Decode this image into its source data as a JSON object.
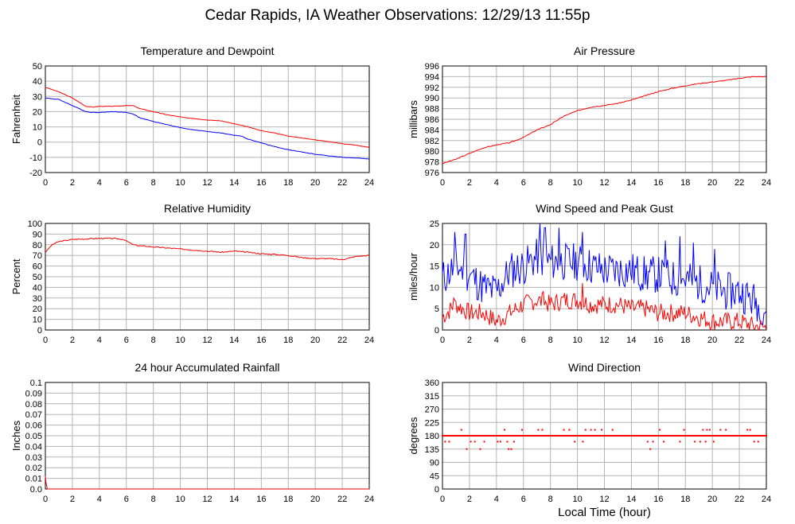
{
  "page": {
    "title": "Cedar Rapids, IA Weather Observations: 12/29/13 11:55p"
  },
  "chart_data": [
    {
      "id": "temp",
      "type": "line",
      "title": "Temperature and Dewpoint",
      "ylabel": "Fahrenheit",
      "xlabel": "",
      "xlim": [
        0,
        24
      ],
      "ylim": [
        -20,
        50
      ],
      "xticks": [
        0,
        2,
        4,
        6,
        8,
        10,
        12,
        14,
        16,
        18,
        20,
        22,
        24
      ],
      "yticks": [
        -20,
        -10,
        0,
        10,
        20,
        30,
        40,
        50
      ],
      "grid": true,
      "series": [
        {
          "color": "#ff0000",
          "jitter": 0.15,
          "points": [
            [
              0,
              36
            ],
            [
              0.5,
              34.5
            ],
            [
              1,
              33
            ],
            [
              2,
              29
            ],
            [
              3,
              23.5
            ],
            [
              3.5,
              23
            ],
            [
              4,
              23.5
            ],
            [
              5,
              23.5
            ],
            [
              6,
              24
            ],
            [
              6.5,
              24
            ],
            [
              7,
              22
            ],
            [
              8,
              20
            ],
            [
              9,
              18
            ],
            [
              10,
              16.5
            ],
            [
              11,
              15.5
            ],
            [
              12,
              14.5
            ],
            [
              13,
              14
            ],
            [
              14,
              12
            ],
            [
              14.5,
              11
            ],
            [
              15,
              10
            ],
            [
              16,
              7.5
            ],
            [
              17,
              6
            ],
            [
              18,
              4
            ],
            [
              20,
              1.5
            ],
            [
              22,
              -1
            ],
            [
              23,
              -2
            ],
            [
              24,
              -3.5
            ]
          ]
        },
        {
          "color": "#0000ff",
          "jitter": 0.15,
          "points": [
            [
              0,
              29
            ],
            [
              0.5,
              28.5
            ],
            [
              1,
              28
            ],
            [
              2,
              24
            ],
            [
              3,
              20
            ],
            [
              3.5,
              19.5
            ],
            [
              4,
              19.5
            ],
            [
              5,
              20
            ],
            [
              6,
              19.5
            ],
            [
              6.5,
              18.5
            ],
            [
              7,
              16
            ],
            [
              8,
              13.5
            ],
            [
              9,
              11.5
            ],
            [
              10,
              9.5
            ],
            [
              11,
              8
            ],
            [
              12,
              7
            ],
            [
              13,
              6
            ],
            [
              14,
              4.5
            ],
            [
              14.5,
              4
            ],
            [
              15,
              2
            ],
            [
              16,
              -0.5
            ],
            [
              17,
              -3
            ],
            [
              18,
              -5
            ],
            [
              20,
              -8
            ],
            [
              22,
              -10
            ],
            [
              24,
              -11
            ]
          ]
        }
      ]
    },
    {
      "id": "pressure",
      "type": "line",
      "title": "Air Pressure",
      "ylabel": "millibars",
      "xlabel": "",
      "xlim": [
        0,
        24
      ],
      "ylim": [
        976,
        996
      ],
      "xticks": [
        0,
        2,
        4,
        6,
        8,
        10,
        12,
        14,
        16,
        18,
        20,
        22,
        24
      ],
      "yticks": [
        976,
        978,
        980,
        982,
        984,
        986,
        988,
        990,
        992,
        994,
        996
      ],
      "grid": true,
      "series": [
        {
          "color": "#ff0000",
          "jitter": 0.08,
          "points": [
            [
              0,
              977.7
            ],
            [
              1,
              978.5
            ],
            [
              2,
              979.6
            ],
            [
              3,
              980.6
            ],
            [
              4,
              981.2
            ],
            [
              5,
              981.6
            ],
            [
              6,
              982.6
            ],
            [
              7,
              984
            ],
            [
              8,
              985
            ],
            [
              9,
              986.6
            ],
            [
              10,
              987.6
            ],
            [
              11,
              988.3
            ],
            [
              12,
              988.6
            ],
            [
              13,
              989
            ],
            [
              14,
              989.6
            ],
            [
              15,
              990.4
            ],
            [
              16,
              991.2
            ],
            [
              17,
              991.8
            ],
            [
              18,
              992.3
            ],
            [
              19,
              992.7
            ],
            [
              20,
              993
            ],
            [
              21,
              993.3
            ],
            [
              22,
              993.7
            ],
            [
              23,
              994
            ],
            [
              24,
              994
            ]
          ]
        }
      ]
    },
    {
      "id": "humidity",
      "type": "line",
      "title": "Relative Humidity",
      "ylabel": "Percent",
      "xlabel": "",
      "xlim": [
        0,
        24
      ],
      "ylim": [
        0,
        100
      ],
      "xticks": [
        0,
        2,
        4,
        6,
        8,
        10,
        12,
        14,
        16,
        18,
        20,
        22,
        24
      ],
      "yticks": [
        0,
        10,
        20,
        30,
        40,
        50,
        60,
        70,
        80,
        90,
        100
      ],
      "grid": true,
      "series": [
        {
          "color": "#ff0000",
          "jitter": 0.5,
          "points": [
            [
              0,
              73
            ],
            [
              0.5,
              80
            ],
            [
              1,
              83
            ],
            [
              2,
              85
            ],
            [
              3,
              85.5
            ],
            [
              4,
              86
            ],
            [
              5,
              86
            ],
            [
              5.8,
              85
            ],
            [
              6.5,
              80
            ],
            [
              7,
              79
            ],
            [
              8,
              78
            ],
            [
              9,
              77
            ],
            [
              10,
              76
            ],
            [
              11,
              75
            ],
            [
              12,
              74
            ],
            [
              13,
              73
            ],
            [
              14,
              74
            ],
            [
              15,
              73
            ],
            [
              16,
              71.5
            ],
            [
              17,
              71
            ],
            [
              18,
              70
            ],
            [
              19,
              68
            ],
            [
              20,
              67
            ],
            [
              21,
              67
            ],
            [
              22,
              66
            ],
            [
              23,
              69
            ],
            [
              24,
              70
            ]
          ]
        }
      ]
    },
    {
      "id": "wind",
      "type": "line",
      "title": "Wind Speed and Peak Gust",
      "ylabel": "miles/hour",
      "xlabel": "",
      "xlim": [
        0,
        24
      ],
      "ylim": [
        0,
        25
      ],
      "xticks": [
        0,
        2,
        4,
        6,
        8,
        10,
        12,
        14,
        16,
        18,
        20,
        22,
        24
      ],
      "yticks": [
        0,
        5,
        10,
        15,
        20,
        25
      ],
      "grid": true,
      "series": [
        {
          "color": "#0000ff",
          "noisy": true,
          "noise": 4.5,
          "seed": 11,
          "points": [
            [
              0,
              12
            ],
            [
              1,
              15
            ],
            [
              2,
              13
            ],
            [
              3,
              10
            ],
            [
              4,
              9
            ],
            [
              5,
              14
            ],
            [
              6,
              15
            ],
            [
              7,
              17
            ],
            [
              8,
              16
            ],
            [
              9,
              16
            ],
            [
              10,
              16
            ],
            [
              11,
              15
            ],
            [
              12,
              14
            ],
            [
              13,
              14
            ],
            [
              14,
              14
            ],
            [
              15,
              13
            ],
            [
              16,
              13
            ],
            [
              17,
              12
            ],
            [
              18,
              12
            ],
            [
              19,
              11
            ],
            [
              20,
              10
            ],
            [
              21,
              9
            ],
            [
              22,
              9
            ],
            [
              23,
              7
            ],
            [
              24,
              5
            ]
          ],
          "peaks": [
            [
              0.9,
              23
            ],
            [
              1.7,
              22.5
            ],
            [
              7.2,
              25
            ],
            [
              7.6,
              24
            ],
            [
              8.6,
              24
            ],
            [
              10.4,
              23
            ],
            [
              16.5,
              21
            ],
            [
              17.6,
              22
            ],
            [
              18.6,
              20.5
            ],
            [
              20.2,
              19
            ],
            [
              23.5,
              3
            ]
          ]
        },
        {
          "color": "#ff0000",
          "noisy": true,
          "noise": 2.2,
          "seed": 7,
          "points": [
            [
              0,
              3
            ],
            [
              1,
              6
            ],
            [
              2,
              4
            ],
            [
              3,
              4
            ],
            [
              4,
              2
            ],
            [
              5,
              4
            ],
            [
              6,
              6
            ],
            [
              7,
              7
            ],
            [
              8,
              6
            ],
            [
              9,
              7
            ],
            [
              10,
              7
            ],
            [
              11,
              6
            ],
            [
              12,
              6
            ],
            [
              13,
              6
            ],
            [
              14,
              5
            ],
            [
              15,
              5
            ],
            [
              16,
              4
            ],
            [
              17,
              4
            ],
            [
              18,
              4
            ],
            [
              19,
              3
            ],
            [
              20,
              2
            ],
            [
              21,
              2
            ],
            [
              22,
              2
            ],
            [
              23,
              1
            ],
            [
              24,
              0.5
            ]
          ],
          "peaks": [
            [
              10.4,
              11
            ],
            [
              7.5,
              9
            ],
            [
              0.8,
              7.5
            ]
          ]
        }
      ]
    },
    {
      "id": "rain",
      "type": "line",
      "title": "24 hour Accumulated Rainfall",
      "ylabel": "Inches",
      "xlabel": "",
      "xlim": [
        0,
        24
      ],
      "ylim": [
        0,
        0.1
      ],
      "xticks": [
        0,
        2,
        4,
        6,
        8,
        10,
        12,
        14,
        16,
        18,
        20,
        22,
        24
      ],
      "yticks": [
        "0.0",
        "0.01",
        "0.02",
        "0.03",
        "0.04",
        "0.05",
        "0.06",
        "0.07",
        "0.08",
        "0.09",
        "0.1"
      ],
      "grid": true,
      "series": [
        {
          "color": "#ff0000",
          "points": [
            [
              0,
              0.012
            ],
            [
              0.05,
              0.006
            ],
            [
              0.15,
              0
            ],
            [
              24,
              0
            ]
          ]
        }
      ]
    },
    {
      "id": "direction",
      "type": "scatter",
      "title": "Wind Direction",
      "ylabel": "degrees",
      "xlabel": "Local Time (hour)",
      "xlim": [
        0,
        24
      ],
      "ylim": [
        0,
        360
      ],
      "xticks": [
        0,
        2,
        4,
        6,
        8,
        10,
        12,
        14,
        16,
        18,
        20,
        22,
        24
      ],
      "yticks": [
        0,
        45,
        90,
        135,
        180,
        225,
        270,
        315,
        360
      ],
      "grid": true,
      "series": [
        {
          "color": "#ff0000",
          "base": 180,
          "step": 0.1,
          "points": [
            [
              0.2,
              160
            ],
            [
              0.5,
              160
            ],
            [
              1.4,
              200
            ],
            [
              1.8,
              135
            ],
            [
              2.1,
              160
            ],
            [
              2.4,
              160
            ],
            [
              2.8,
              135
            ],
            [
              3.1,
              160
            ],
            [
              4.1,
              160
            ],
            [
              4.3,
              160
            ],
            [
              4.6,
              200
            ],
            [
              4.8,
              160
            ],
            [
              4.9,
              135
            ],
            [
              5.1,
              135
            ],
            [
              5.3,
              160
            ],
            [
              5.9,
              200
            ],
            [
              7.1,
              200
            ],
            [
              7.4,
              200
            ],
            [
              9,
              200
            ],
            [
              9.4,
              200
            ],
            [
              9.8,
              160
            ],
            [
              10.4,
              160
            ],
            [
              10.6,
              200
            ],
            [
              11,
              200
            ],
            [
              11.3,
              200
            ],
            [
              11.8,
              200
            ],
            [
              12.6,
              200
            ],
            [
              15.2,
              160
            ],
            [
              15.4,
              135
            ],
            [
              15.6,
              160
            ],
            [
              16.1,
              200
            ],
            [
              16.4,
              160
            ],
            [
              17.6,
              160
            ],
            [
              17.9,
              200
            ],
            [
              18.7,
              160
            ],
            [
              19.1,
              160
            ],
            [
              19.3,
              200
            ],
            [
              19.5,
              160
            ],
            [
              19.6,
              200
            ],
            [
              19.8,
              200
            ],
            [
              20.1,
              160
            ],
            [
              20.6,
              200
            ],
            [
              21,
              200
            ],
            [
              22.6,
              200
            ],
            [
              22.8,
              200
            ],
            [
              23.1,
              160
            ],
            [
              23.4,
              160
            ]
          ]
        }
      ]
    }
  ]
}
